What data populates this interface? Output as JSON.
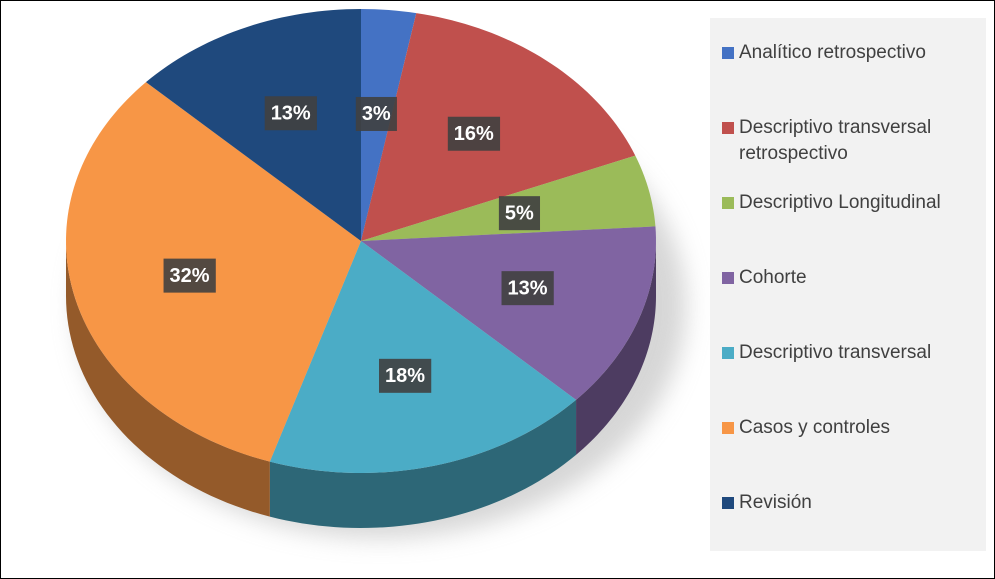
{
  "chart_data": {
    "type": "pie",
    "categories": [
      "Analítico retrospectivo",
      "Descriptivo transversal retrospectivo",
      "Descriptivo Longitudinal",
      "Cohorte",
      "Descriptivo transversal",
      "Casos y controles",
      "Revisión"
    ],
    "values": [
      3,
      16,
      5,
      13,
      18,
      32,
      13
    ],
    "value_labels": [
      "3%",
      "16%",
      "5%",
      "13%",
      "18%",
      "32%",
      "13%"
    ],
    "colors": [
      "#4472c4",
      "#c0504d",
      "#9bbb59",
      "#8064a2",
      "#4bacc6",
      "#f79646",
      "#1f497d"
    ],
    "legend": "right"
  }
}
